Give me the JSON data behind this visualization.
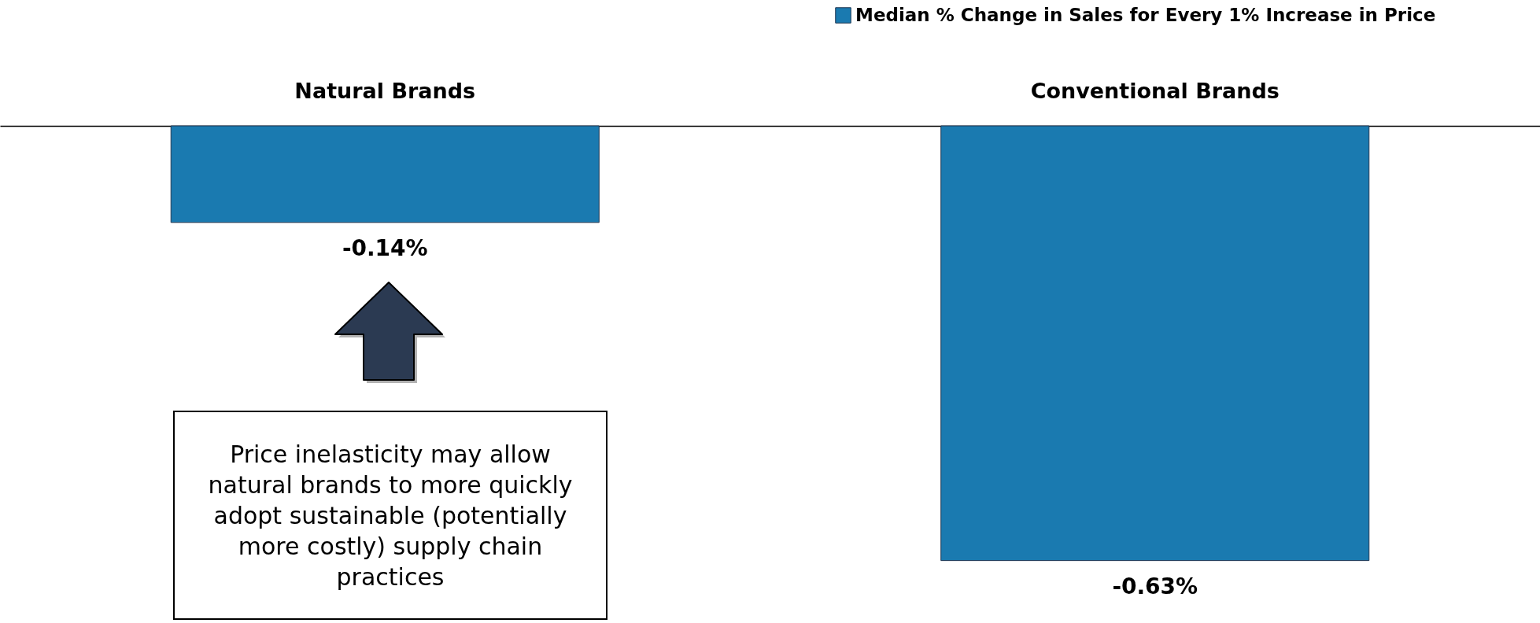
{
  "chart_data": {
    "type": "bar",
    "categories": [
      "Natural Brands",
      "Conventional Brands"
    ],
    "series": [
      {
        "name": "Median % Change in Sales for Every 1% Increase in Price",
        "color": "#1a7ab0",
        "values": [
          -0.14,
          -0.63
        ],
        "value_labels": [
          "-0.14%",
          "-0.63%"
        ]
      }
    ],
    "legend": "top right",
    "annotations": [
      "Price inelasticity may allow natural brands to more quickly adopt sustainable (potentially more costly) supply chain practices"
    ]
  }
}
